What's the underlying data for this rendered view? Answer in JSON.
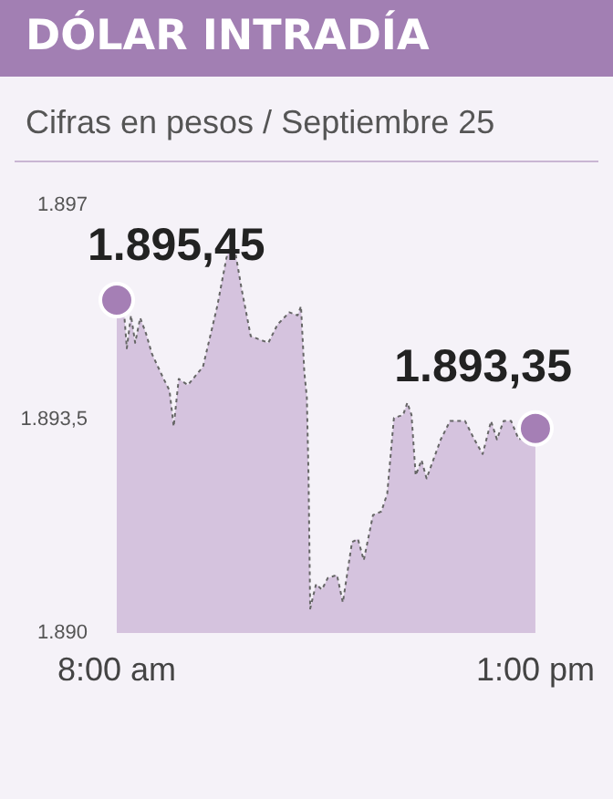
{
  "chart_data": {
    "type": "area",
    "title": "DÓLAR INTRADÍA",
    "subtitle": "Cifras en pesos / Septiembre 25",
    "xlim": [
      8,
      13
    ],
    "xticks": [
      {
        "value": 8,
        "label": "8:00 am"
      },
      {
        "value": 13,
        "label": "1:00 pm"
      }
    ],
    "ylim": [
      1890,
      1897
    ],
    "yticks": [
      {
        "value": 1890,
        "label": "1.890"
      },
      {
        "value": 1893.5,
        "label": "1.893,5"
      },
      {
        "value": 1897,
        "label": "1.897"
      }
    ],
    "series": [
      {
        "color": "#d5c3de",
        "marker": "none",
        "line_style": "dotted",
        "x": [
          8,
          8.03,
          8.09,
          8.12,
          8.17,
          8.22,
          8.28,
          8.35,
          8.42,
          8.56,
          8.63,
          8.68,
          8.74,
          8.85,
          9.03,
          9.2,
          9.31,
          9.38,
          9.42,
          9.49,
          9.6,
          9.81,
          9.92,
          10.06,
          10.16,
          10.2,
          10.24,
          10.27,
          10.29,
          10.31,
          10.38,
          10.45,
          10.52,
          10.63,
          10.7,
          10.81,
          10.88,
          10.95,
          11.06,
          11.16,
          11.23,
          11.31,
          11.42,
          11.47,
          11.52,
          11.57,
          11.64,
          11.7,
          11.87,
          11.98,
          12.16,
          12.27,
          12.37,
          12.47,
          12.54,
          12.62,
          12.71,
          12.8,
          12.91,
          13
        ],
        "values": [
          1895.45,
          1895.25,
          1895.2,
          1894.66,
          1895.2,
          1894.75,
          1895.16,
          1894.9,
          1894.57,
          1894.16,
          1893.97,
          1893.38,
          1894.16,
          1894.06,
          1894.36,
          1895.35,
          1896.14,
          1896.44,
          1896.2,
          1895.64,
          1894.86,
          1894.75,
          1895.05,
          1895.25,
          1895.2,
          1895.35,
          1894.27,
          1893.86,
          1892.58,
          1890.4,
          1890.8,
          1890.71,
          1890.9,
          1890.95,
          1890.5,
          1891.49,
          1891.54,
          1891.19,
          1891.93,
          1891.99,
          1892.28,
          1893.52,
          1893.57,
          1893.77,
          1893.57,
          1892.58,
          1892.83,
          1892.53,
          1893.17,
          1893.47,
          1893.47,
          1893.17,
          1892.93,
          1893.47,
          1893.17,
          1893.47,
          1893.47,
          1893.17,
          1893.22,
          1893.35
        ]
      },
      {
        "type": "scatter",
        "color": "#a57fb5",
        "marker": "circle",
        "x": [
          8,
          13
        ],
        "values": [
          1895.45,
          1893.35
        ]
      }
    ],
    "annotations": [
      {
        "text": "1.895,45",
        "x": 8,
        "y": 1895.45
      },
      {
        "text": "1.893,35",
        "x": 13,
        "y": 1893.35
      }
    ]
  }
}
